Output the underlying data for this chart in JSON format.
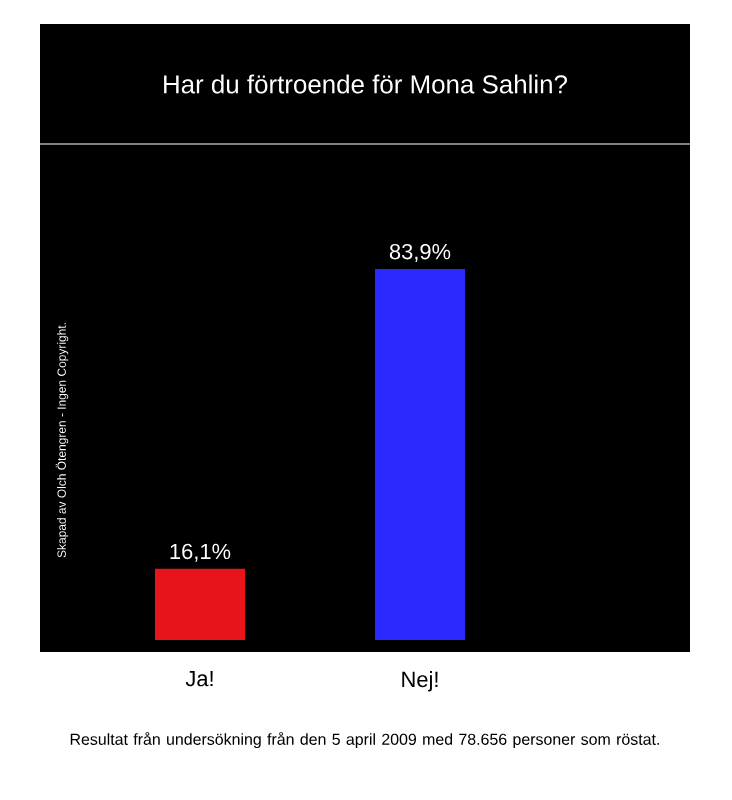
{
  "chart_data": {
    "type": "bar",
    "title": "Har du förtroende för Mona Sahlin?",
    "categories": [
      "Ja!",
      "Nej!"
    ],
    "values": [
      16.1,
      83.9
    ],
    "colors": [
      "#e8141c",
      "#2a2aff"
    ],
    "value_labels": [
      "16,1%",
      "83,9%"
    ],
    "annotations": [
      "Skapad av Olch Ötengren - Ingen Copyright.",
      "Resultat från undersökning från den 5 april 2009 med 78.656 personer som röstat."
    ]
  }
}
